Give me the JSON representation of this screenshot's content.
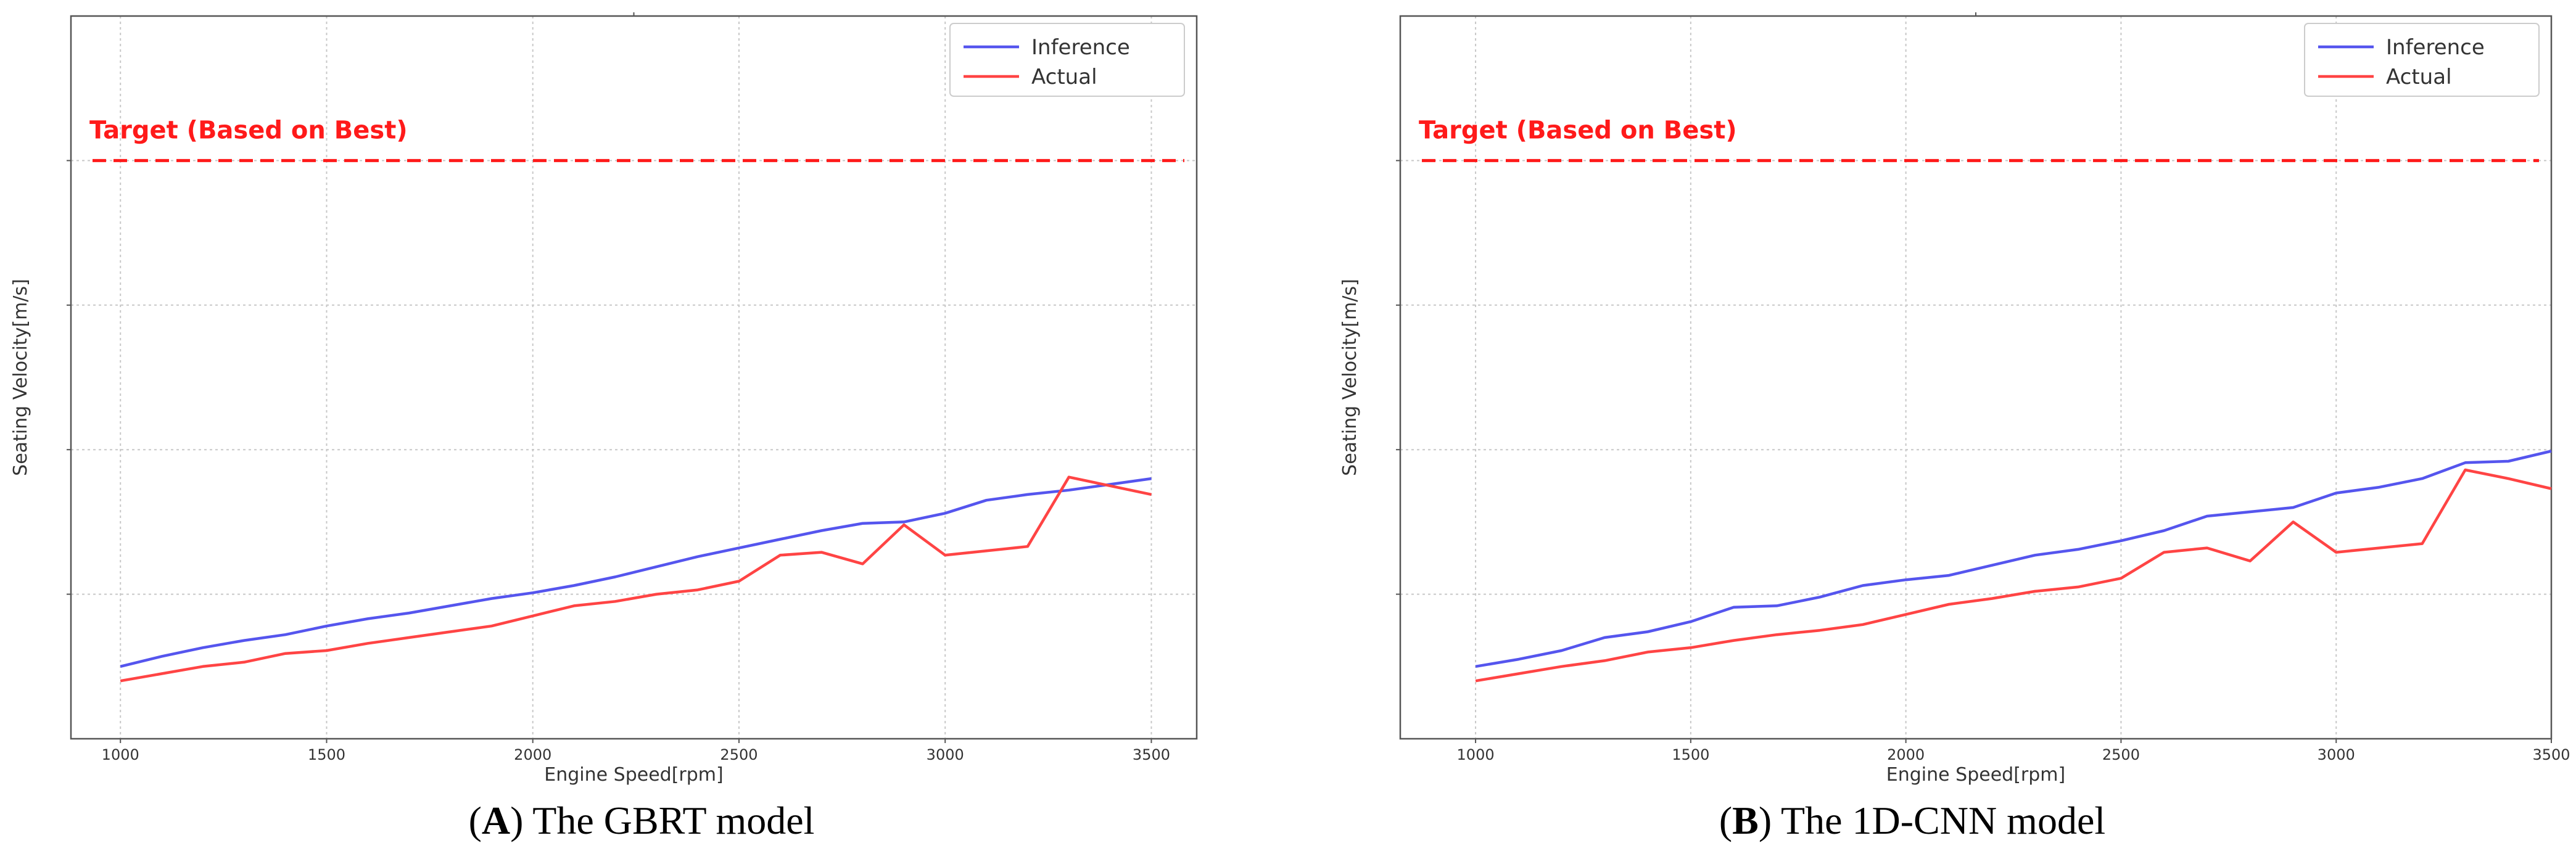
{
  "chart_data": [
    {
      "type": "line",
      "xlabel": "Engine Speed[rpm]",
      "ylabel": "Seating Velocity[m/s]",
      "xlim": [
        880,
        3610
      ],
      "xticks": [
        1000,
        1500,
        2000,
        2500,
        3000,
        3500
      ],
      "ylim": [
        0,
        5
      ],
      "yticks": [
        0,
        1,
        2,
        3,
        4,
        5
      ],
      "yticks_labeled": false,
      "grid": true,
      "legend_position": "top-right",
      "target": {
        "label": "Target (Based on Best)",
        "value": 4.0,
        "color": "#ff1a1a"
      },
      "series": [
        {
          "name": "Inference",
          "color": "#5555ee",
          "x": [
            1000,
            1100,
            1200,
            1300,
            1400,
            1500,
            1600,
            1700,
            1800,
            1900,
            2000,
            2100,
            2200,
            2300,
            2400,
            2500,
            2600,
            2700,
            2800,
            2900,
            3000,
            3100,
            3200,
            3300,
            3400,
            3500
          ],
          "y": [
            0.5,
            0.57,
            0.63,
            0.68,
            0.72,
            0.78,
            0.83,
            0.87,
            0.92,
            0.97,
            1.01,
            1.06,
            1.12,
            1.19,
            1.26,
            1.32,
            1.38,
            1.44,
            1.49,
            1.5,
            1.56,
            1.65,
            1.69,
            1.72,
            1.76,
            1.8
          ]
        },
        {
          "name": "Actual",
          "color": "#ff4444",
          "x": [
            1000,
            1100,
            1200,
            1300,
            1400,
            1500,
            1600,
            1700,
            1800,
            1900,
            2000,
            2100,
            2200,
            2300,
            2400,
            2500,
            2600,
            2700,
            2800,
            2900,
            3000,
            3100,
            3200,
            3300,
            3400,
            3500
          ],
          "y": [
            0.4,
            0.45,
            0.5,
            0.53,
            0.59,
            0.61,
            0.66,
            0.7,
            0.74,
            0.78,
            0.85,
            0.92,
            0.95,
            1.0,
            1.03,
            1.09,
            1.27,
            1.29,
            1.21,
            1.48,
            1.27,
            1.3,
            1.33,
            1.81,
            1.75,
            1.69
          ]
        }
      ],
      "caption": {
        "letter": "A",
        "text": ") The GBRT model"
      }
    },
    {
      "type": "line",
      "xlabel": "Engine Speed[rpm]",
      "ylabel": "Seating Velocity[m/s]",
      "xlim": [
        825,
        3500
      ],
      "xticks": [
        1000,
        1500,
        2000,
        2500,
        3000,
        3500
      ],
      "ylim": [
        0,
        5
      ],
      "yticks": [
        0,
        1,
        2,
        3,
        4,
        5
      ],
      "yticks_labeled": false,
      "grid": true,
      "legend_position": "top-right",
      "target": {
        "label": "Target (Based on Best)",
        "value": 4.0,
        "color": "#ff1a1a"
      },
      "series": [
        {
          "name": "Inference",
          "color": "#5555ee",
          "x": [
            1000,
            1100,
            1200,
            1300,
            1400,
            1500,
            1600,
            1700,
            1800,
            1900,
            2000,
            2100,
            2200,
            2300,
            2400,
            2500,
            2600,
            2700,
            2800,
            2900,
            3000,
            3100,
            3200,
            3300,
            3400,
            3500
          ],
          "y": [
            0.5,
            0.55,
            0.61,
            0.7,
            0.74,
            0.81,
            0.91,
            0.92,
            0.98,
            1.06,
            1.1,
            1.13,
            1.2,
            1.27,
            1.31,
            1.37,
            1.44,
            1.54,
            1.57,
            1.6,
            1.7,
            1.74,
            1.8,
            1.91,
            1.92,
            1.99
          ]
        },
        {
          "name": "Actual",
          "color": "#ff4444",
          "x": [
            1000,
            1100,
            1200,
            1300,
            1400,
            1500,
            1600,
            1700,
            1800,
            1900,
            2000,
            2100,
            2200,
            2300,
            2400,
            2500,
            2600,
            2700,
            2800,
            2900,
            3000,
            3100,
            3200,
            3300,
            3400,
            3500
          ],
          "y": [
            0.4,
            0.45,
            0.5,
            0.54,
            0.6,
            0.63,
            0.68,
            0.72,
            0.75,
            0.79,
            0.86,
            0.93,
            0.97,
            1.02,
            1.05,
            1.11,
            1.29,
            1.32,
            1.23,
            1.5,
            1.29,
            1.32,
            1.35,
            1.86,
            1.8,
            1.73
          ]
        }
      ],
      "caption": {
        "letter": "B",
        "text": ") The 1D-CNN model"
      }
    }
  ]
}
